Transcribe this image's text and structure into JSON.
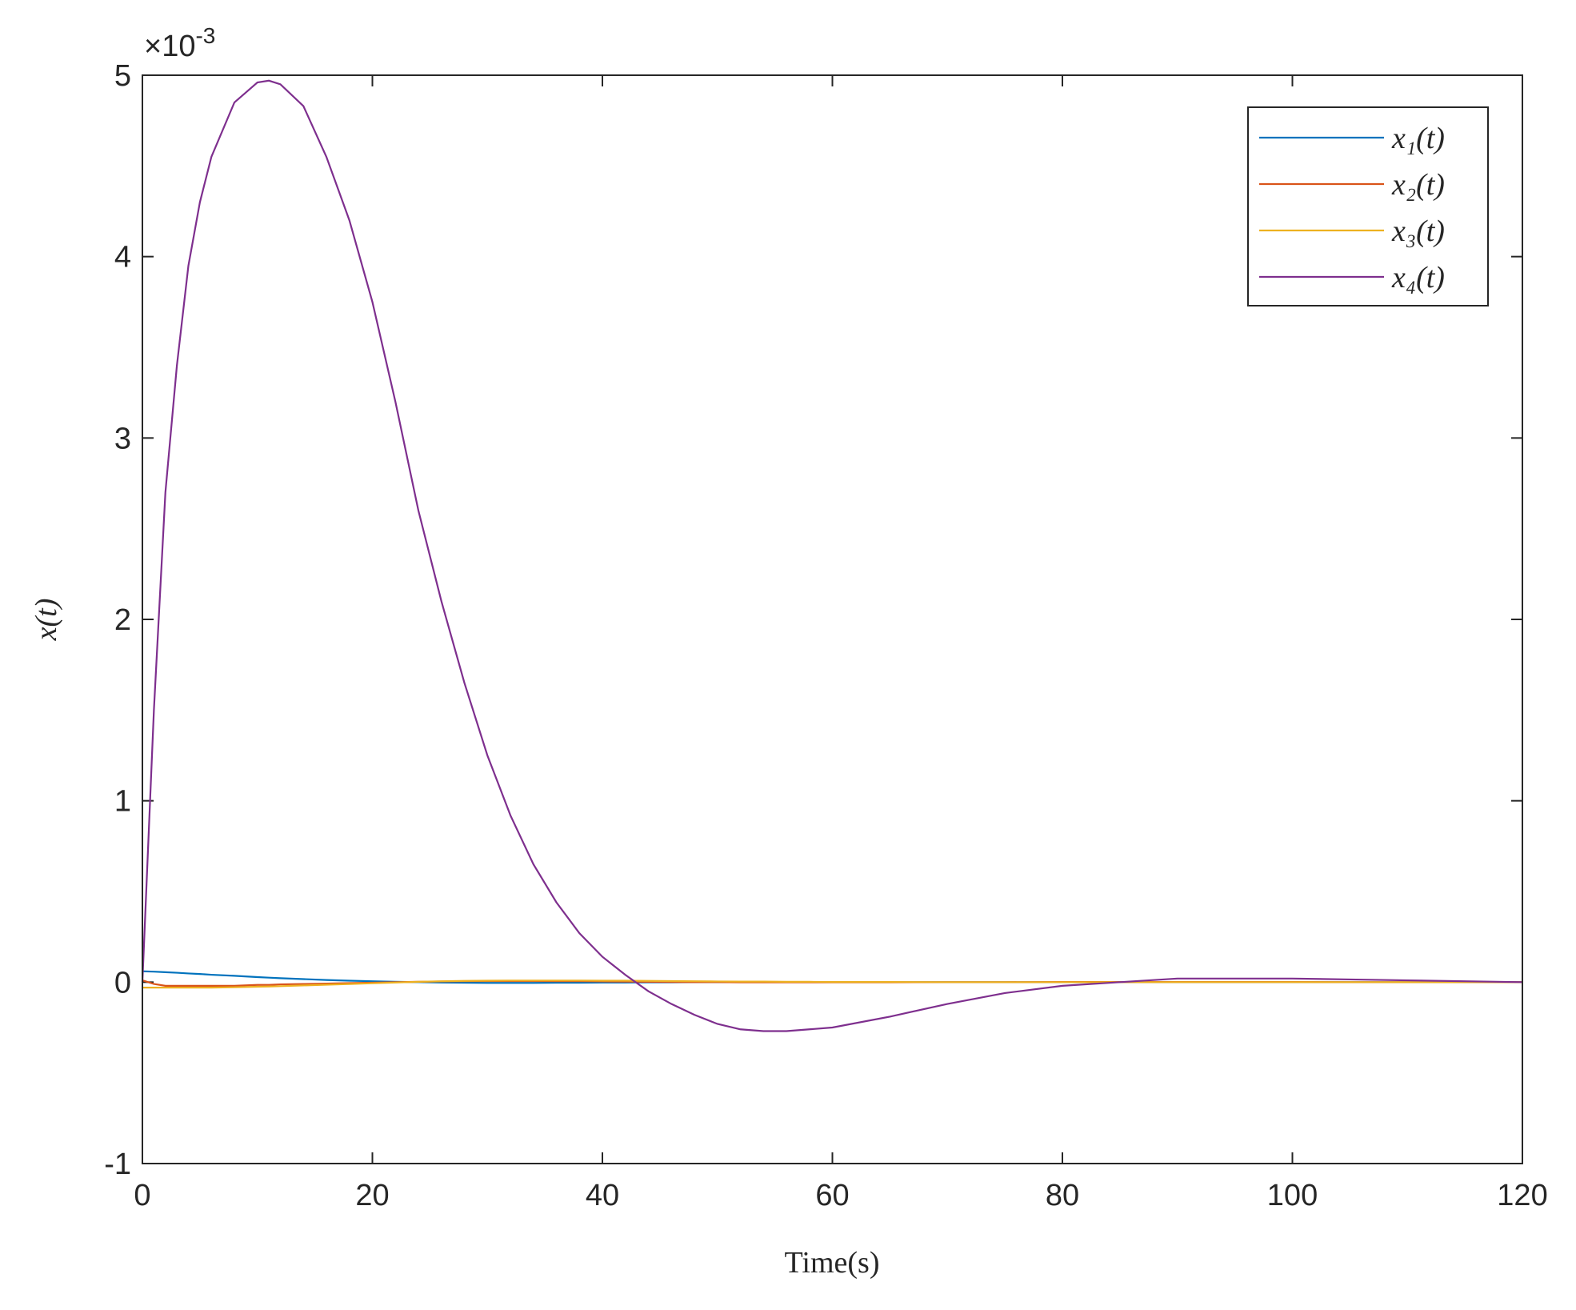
{
  "chart_data": {
    "type": "line",
    "x_label": "Time(s)",
    "y_label": "x(t)",
    "y_multiplier": {
      "base": "×10",
      "exponent": "-3"
    },
    "x": [
      0,
      1,
      2,
      3,
      4,
      5,
      6,
      8,
      10,
      11,
      12,
      14,
      16,
      18,
      20,
      22,
      24,
      26,
      28,
      30,
      32,
      34,
      36,
      38,
      40,
      42,
      44,
      46,
      48,
      50,
      52,
      54,
      56,
      58,
      60,
      65,
      70,
      75,
      80,
      85,
      90,
      95,
      100,
      105,
      110,
      115,
      120
    ],
    "series": [
      {
        "name": "x₁(t)",
        "color": "#0072bd",
        "values": [
          0.06,
          0.058,
          0.055,
          0.052,
          0.048,
          0.045,
          0.041,
          0.035,
          0.028,
          0.025,
          0.022,
          0.017,
          0.012,
          0.008,
          0.005,
          0.002,
          0,
          -0.002,
          -0.003,
          -0.004,
          -0.004,
          -0.004,
          -0.003,
          -0.003,
          -0.002,
          -0.002,
          -0.001,
          -0.001,
          0,
          0,
          0,
          0,
          0,
          0,
          0,
          0,
          0,
          0,
          0,
          0,
          0,
          0,
          0,
          0,
          0,
          0,
          0
        ]
      },
      {
        "name": "x₂(t)",
        "color": "#d95319",
        "values": [
          0.01,
          -0.01,
          -0.02,
          -0.02,
          -0.02,
          -0.02,
          -0.02,
          -0.02,
          -0.015,
          -0.015,
          -0.012,
          -0.01,
          -0.008,
          -0.005,
          -0.003,
          0,
          0.002,
          0.004,
          0.005,
          0.006,
          0.006,
          0.006,
          0.005,
          0.005,
          0.004,
          0.003,
          0.002,
          0.001,
          0,
          0,
          -0.001,
          -0.001,
          -0.001,
          -0.001,
          -0.001,
          -0.001,
          0,
          0,
          0.001,
          0.001,
          0.001,
          0.001,
          0.001,
          0,
          0,
          0,
          0
        ]
      },
      {
        "name": "x₃(t)",
        "color": "#edb120",
        "values": [
          -0.03,
          -0.03,
          -0.03,
          -0.03,
          -0.03,
          -0.03,
          -0.03,
          -0.028,
          -0.025,
          -0.024,
          -0.022,
          -0.018,
          -0.014,
          -0.01,
          -0.006,
          -0.002,
          0.002,
          0.005,
          0.007,
          0.008,
          0.009,
          0.009,
          0.009,
          0.009,
          0.008,
          0.008,
          0.007,
          0.006,
          0.005,
          0.004,
          0.003,
          0.003,
          0.002,
          0.002,
          0.001,
          0.001,
          0,
          0,
          0,
          0,
          0,
          0,
          0,
          0,
          0,
          0,
          0
        ]
      },
      {
        "name": "x₄(t)",
        "color": "#7e2f8e",
        "values": [
          0,
          1.5,
          2.7,
          3.4,
          3.95,
          4.3,
          4.55,
          4.85,
          4.96,
          4.97,
          4.95,
          4.83,
          4.55,
          4.2,
          3.75,
          3.2,
          2.6,
          2.1,
          1.65,
          1.25,
          0.92,
          0.65,
          0.44,
          0.27,
          0.14,
          0.04,
          -0.05,
          -0.12,
          -0.18,
          -0.23,
          -0.26,
          -0.27,
          -0.27,
          -0.26,
          -0.25,
          -0.19,
          -0.12,
          -0.06,
          -0.02,
          0,
          0.02,
          0.02,
          0.02,
          0.015,
          0.01,
          0.005,
          0
        ]
      }
    ],
    "xlim": [
      0,
      120
    ],
    "xticks": [
      0,
      20,
      40,
      60,
      80,
      100,
      120
    ],
    "ylim": [
      -1,
      5
    ],
    "yticks": [
      -1,
      0,
      1,
      2,
      3,
      4,
      5
    ],
    "grid": false,
    "legend": "top-right"
  }
}
